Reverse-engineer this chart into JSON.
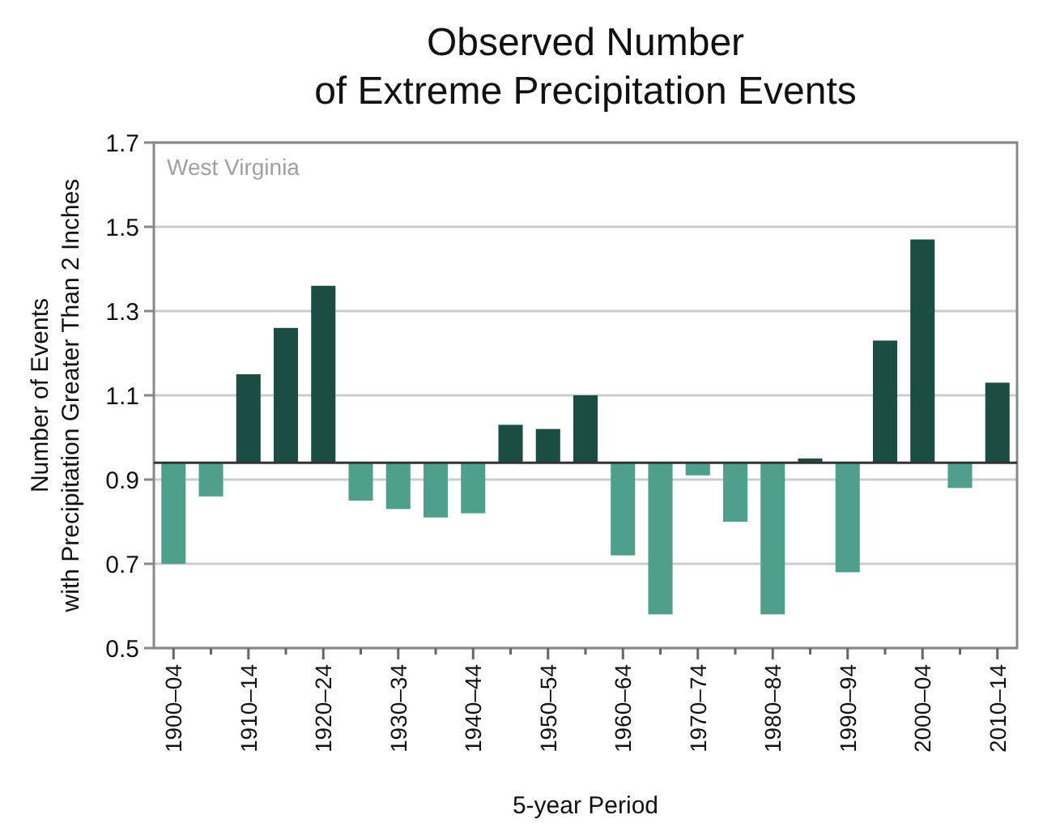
{
  "chart_data": {
    "type": "bar",
    "title": "Observed Number\nof Extreme Precipitation Events",
    "xlabel": "5-year Period",
    "ylabel": "Number of Events\nwith Precipitation Greater Than 2 Inches",
    "annotations": [
      "West Virginia"
    ],
    "categories": [
      "1900–04",
      null,
      "1910–14",
      null,
      "1920–24",
      null,
      "1930–34",
      null,
      "1940–44",
      null,
      "1950–54",
      null,
      "1960–64",
      null,
      "1970–74",
      null,
      "1980–84",
      null,
      "1990–94",
      null,
      "2000–04",
      null,
      "2010–14"
    ],
    "values": [
      -0.24,
      -0.08,
      0.21,
      0.32,
      0.42,
      -0.09,
      -0.11,
      -0.13,
      -0.12,
      0.09,
      0.08,
      0.16,
      -0.22,
      -0.36,
      -0.03,
      -0.14,
      -0.36,
      0.01,
      -0.26,
      0.29,
      0.53,
      -0.06,
      0.19
    ],
    "base": [
      0.94,
      0.94,
      0.94,
      0.94,
      0.94,
      0.94,
      0.94,
      0.94,
      0.94,
      0.94,
      0.94,
      0.94,
      0.94,
      0.94,
      0.94,
      0.94,
      0.94,
      0.94,
      0.94,
      0.94,
      0.94,
      0.94,
      0.94
    ],
    "colors": [
      "#4f9f8d",
      "#4f9f8d",
      "#1b4d44",
      "#1b4d44",
      "#1b4d44",
      "#4f9f8d",
      "#4f9f8d",
      "#4f9f8d",
      "#4f9f8d",
      "#1b4d44",
      "#1b4d44",
      "#1b4d44",
      "#4f9f8d",
      "#4f9f8d",
      "#4f9f8d",
      "#4f9f8d",
      "#4f9f8d",
      "#1b4d44",
      "#4f9f8d",
      "#1b4d44",
      "#1b4d44",
      "#4f9f8d",
      "#1b4d44"
    ],
    "ref_lines": [
      {
        "axis": "y",
        "value": 0.94,
        "color": "#333333"
      }
    ],
    "ylim": [
      0.5,
      1.7
    ],
    "yticks": [
      0.5,
      0.7,
      0.9,
      1.1,
      1.3,
      1.5,
      1.7
    ],
    "grid": "y"
  }
}
